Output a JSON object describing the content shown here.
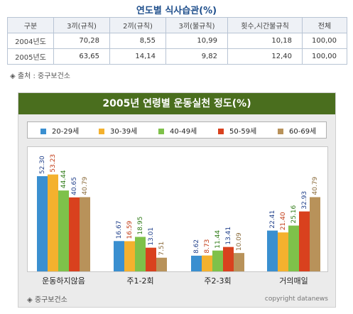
{
  "table_title": "연도별 식사습관(%)",
  "table": {
    "headers": [
      "구분",
      "3끼(규칙)",
      "2끼(규칙)",
      "3끼(불규칙)",
      "횟수,시간불규칙",
      "전체"
    ],
    "rows": [
      [
        "2004년도",
        "70,28",
        "8,55",
        "10,99",
        "10,18",
        "100,00"
      ],
      [
        "2005년도",
        "63,65",
        "14,14",
        "9,82",
        "12,40",
        "100,00"
      ]
    ]
  },
  "source_top": "◈ 출처 : 중구보건소",
  "source_bottom": "◈ 중구보건소",
  "copyright": "copyright datanews",
  "chart_data": {
    "type": "bar",
    "title": "2005년 연령별 운동실천 정도(%)",
    "categories": [
      "운동하지않음",
      "주1-2회",
      "주2-3회",
      "거의매일"
    ],
    "series": [
      {
        "name": "20-29세",
        "color": "#3a8fd0",
        "label_color": "#1f3f8a",
        "values": [
          52.3,
          16.67,
          8.62,
          22.41
        ]
      },
      {
        "name": "30-39세",
        "color": "#f4b12e",
        "label_color": "#c23a14",
        "values": [
          53.23,
          16.59,
          8.73,
          21.4
        ]
      },
      {
        "name": "40-49세",
        "color": "#7ec14a",
        "label_color": "#2d7a14",
        "values": [
          44.44,
          18.95,
          11.44,
          25.16
        ]
      },
      {
        "name": "50-59세",
        "color": "#d9411e",
        "label_color": "#1f3f8a",
        "values": [
          40.65,
          13.01,
          13.41,
          32.93
        ]
      },
      {
        "name": "60-69세",
        "color": "#b8925a",
        "label_color": "#8a6a3a",
        "values": [
          40.79,
          7.51,
          10.09,
          40.79
        ]
      }
    ],
    "ylim": [
      0,
      70
    ],
    "grid": false,
    "legend": "top"
  }
}
